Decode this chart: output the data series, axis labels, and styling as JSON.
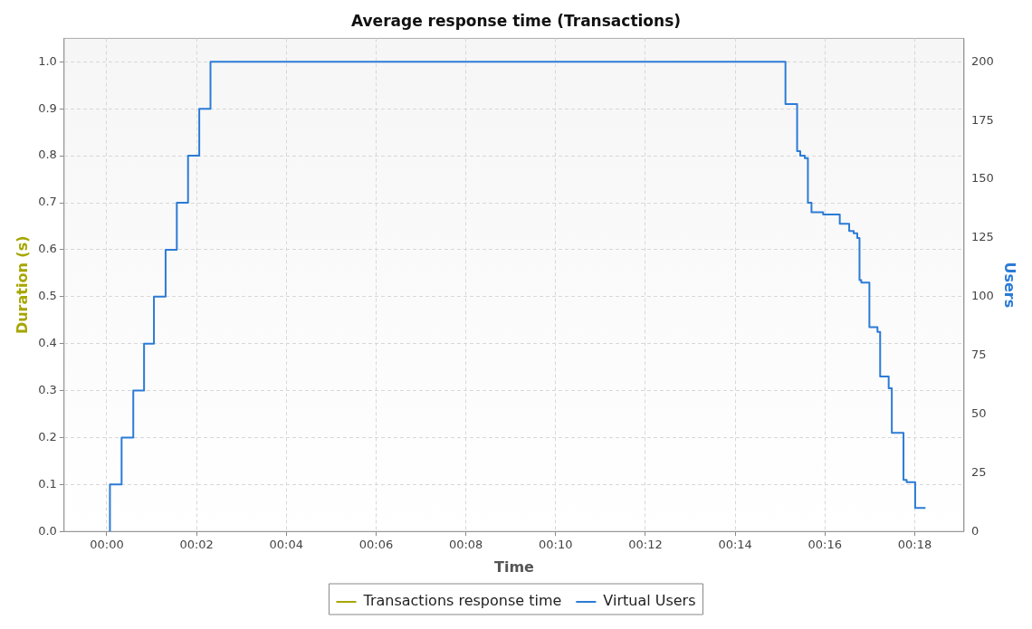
{
  "chart_data": {
    "type": "step",
    "title": "Average response time (Transactions)",
    "xlabel": "Time",
    "ylabel": "Duration (s)",
    "y2label": "Users",
    "xlim": [
      -0.95,
      19.1
    ],
    "xticks": [
      {
        "value": 0,
        "label": "00:00"
      },
      {
        "value": 2,
        "label": "00:02"
      },
      {
        "value": 4,
        "label": "00:04"
      },
      {
        "value": 6,
        "label": "00:06"
      },
      {
        "value": 8,
        "label": "00:08"
      },
      {
        "value": 10,
        "label": "00:10"
      },
      {
        "value": 12,
        "label": "00:12"
      },
      {
        "value": 14,
        "label": "00:14"
      },
      {
        "value": 16,
        "label": "00:16"
      },
      {
        "value": 18,
        "label": "00:18"
      }
    ],
    "ylim": [
      0,
      1.05
    ],
    "yticks": [
      {
        "value": 0,
        "label": "0.0"
      },
      0.1,
      0.2,
      0.3,
      0.4,
      0.5,
      0.6,
      0.7,
      0.8,
      0.9,
      {
        "value": 1,
        "label": "1.0"
      }
    ],
    "y2lim": [
      0,
      210
    ],
    "y2ticks": [
      0,
      25,
      50,
      75,
      100,
      125,
      150,
      175,
      200
    ],
    "grid": true,
    "legend": "bottom",
    "marker": "none",
    "line_style": "solid",
    "series": [
      {
        "name": "Transactions response time",
        "color": "#a6a600"
      },
      {
        "name": "Virtual Users",
        "color": "#2b7bd6",
        "axis": "y2",
        "x": [
          0.07,
          0.07,
          0.33,
          0.59,
          0.83,
          1.05,
          1.31,
          1.56,
          1.81,
          2.06,
          2.31,
          15.12,
          15.38,
          15.45,
          15.55,
          15.62,
          15.7,
          15.96,
          16.33,
          16.54,
          16.64,
          16.72,
          16.77,
          16.81,
          16.99,
          17.17,
          17.23,
          17.42,
          17.49,
          17.75,
          17.82,
          18.01,
          18.24
        ],
        "values": [
          0,
          20,
          40,
          60,
          80,
          100,
          120,
          140,
          160,
          180,
          200,
          182,
          162,
          160,
          159,
          140,
          136,
          135,
          131,
          128,
          127,
          125,
          107,
          106,
          87,
          85,
          66,
          61,
          42,
          22,
          21,
          10,
          10
        ]
      }
    ]
  }
}
